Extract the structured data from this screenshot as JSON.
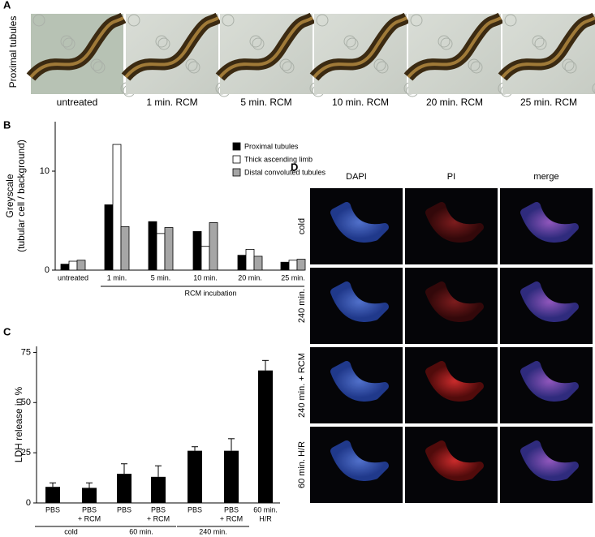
{
  "panel_a": {
    "letter": "A",
    "row_label": "Proximal tubules",
    "images": [
      "untreated",
      "1 min. RCM",
      "5 min. RCM",
      "10 min. RCM",
      "20 min. RCM",
      "25 min. RCM"
    ]
  },
  "chart_data": [
    {
      "type": "bar",
      "panel": "B",
      "ylabel": [
        "Greyscale",
        "(tubular cell / background)"
      ],
      "xlabel": "RCM incubation",
      "categories": [
        "untreated",
        "1 min.",
        "5 min.",
        "10 min.",
        "20 min.",
        "25 min."
      ],
      "series": [
        {
          "name": "Proximal tubules",
          "color": "#000000",
          "values": [
            0.6,
            6.6,
            4.9,
            3.9,
            1.5,
            0.8
          ]
        },
        {
          "name": "Thick ascending limb",
          "color": "#ffffff",
          "values": [
            0.9,
            12.7,
            3.7,
            2.4,
            2.1,
            1.0
          ]
        },
        {
          "name": "Distal convoluted tubules",
          "color": "#a6a6a6",
          "values": [
            1.0,
            4.4,
            4.3,
            4.8,
            1.4,
            1.1
          ]
        }
      ],
      "ylim": [
        0,
        15
      ],
      "yticks": [
        0,
        10
      ],
      "legend": "top-right"
    },
    {
      "type": "bar",
      "panel": "C",
      "ylabel": [
        "LDH release in %"
      ],
      "categories": [
        [
          "PBS"
        ],
        [
          "PBS",
          "+ RCM"
        ],
        [
          "PBS"
        ],
        [
          "PBS",
          "+ RCM"
        ],
        [
          "PBS"
        ],
        [
          "PBS",
          "+ RCM"
        ],
        [
          "60 min.",
          "H/R"
        ]
      ],
      "groups": [
        "cold",
        "60 min.",
        "240 min."
      ],
      "values": [
        8,
        7.5,
        14.5,
        13,
        26,
        26,
        66
      ],
      "errors": [
        2,
        2.5,
        5,
        5.5,
        2,
        6,
        5
      ],
      "color": "#000000",
      "ylim": [
        0,
        78
      ],
      "yticks": [
        0,
        25,
        50,
        75
      ]
    }
  ],
  "panel_d": {
    "letter": "D",
    "columns": [
      "DAPI",
      "PI",
      "merge"
    ],
    "rows": [
      "cold",
      "240 min.",
      "240 min. + RCM",
      "60 min. H/R"
    ]
  }
}
